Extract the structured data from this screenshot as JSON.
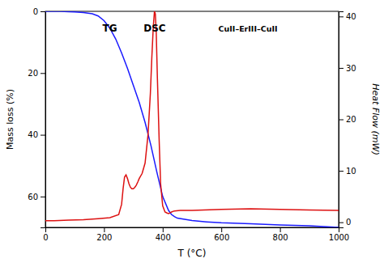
{
  "chart_data": {
    "type": "line",
    "xlabel": "T (°C)",
    "ylabel": "Mass loss (%)",
    "y2label": "Heat Flow (mW)",
    "annotations": [
      "TG",
      "DSC",
      "CuII–ErIII–CuII"
    ],
    "xlim": [
      0,
      1000
    ],
    "xticks": [
      0,
      200,
      400,
      600,
      800,
      1000
    ],
    "ylim": [
      70,
      0
    ],
    "yticks": [
      0,
      20,
      40,
      60
    ],
    "y2lim": [
      -1,
      41
    ],
    "y2ticks": [
      0,
      10,
      20,
      30,
      40
    ],
    "grid": false,
    "series": [
      {
        "color": "#1a1aff",
        "x": [
          0,
          30,
          50,
          80,
          100,
          130,
          160,
          180,
          200,
          220,
          240,
          260,
          280,
          300,
          320,
          340,
          360,
          380,
          400,
          420,
          430,
          440,
          450,
          500,
          550,
          600,
          700,
          800,
          900,
          1000
        ],
        "values": [
          0,
          0,
          0,
          0.1,
          0.2,
          0.4,
          0.8,
          1.5,
          3.0,
          5.5,
          9.0,
          13.5,
          18.5,
          24.0,
          29.5,
          36.0,
          43.5,
          52.0,
          60.0,
          64.5,
          65.8,
          66.5,
          67.0,
          67.8,
          68.2,
          68.5,
          68.8,
          69.2,
          69.5,
          70.0
        ]
      },
      {
        "color": "#dd1111",
        "axis": "y2",
        "x": [
          0,
          30,
          80,
          130,
          180,
          220,
          250,
          260,
          265,
          270,
          275,
          280,
          285,
          290,
          295,
          300,
          305,
          310,
          315,
          320,
          330,
          340,
          350,
          358,
          363,
          368,
          372,
          375,
          378,
          382,
          388,
          393,
          400,
          408,
          415,
          420,
          425,
          430,
          440,
          460,
          500,
          600,
          700,
          800,
          900,
          1000
        ],
        "values": [
          0.3,
          0.3,
          0.4,
          0.5,
          0.7,
          0.9,
          1.5,
          3.5,
          6.5,
          8.8,
          9.2,
          8.5,
          7.5,
          6.8,
          6.5,
          6.5,
          6.8,
          7.2,
          7.8,
          8.5,
          9.5,
          11.5,
          17.0,
          25.0,
          32.0,
          38.0,
          41.0,
          40.5,
          37.0,
          28.0,
          16.0,
          7.5,
          3.2,
          2.0,
          1.8,
          1.7,
          1.8,
          2.0,
          2.2,
          2.3,
          2.3,
          2.5,
          2.6,
          2.5,
          2.4,
          2.3
        ]
      }
    ]
  }
}
